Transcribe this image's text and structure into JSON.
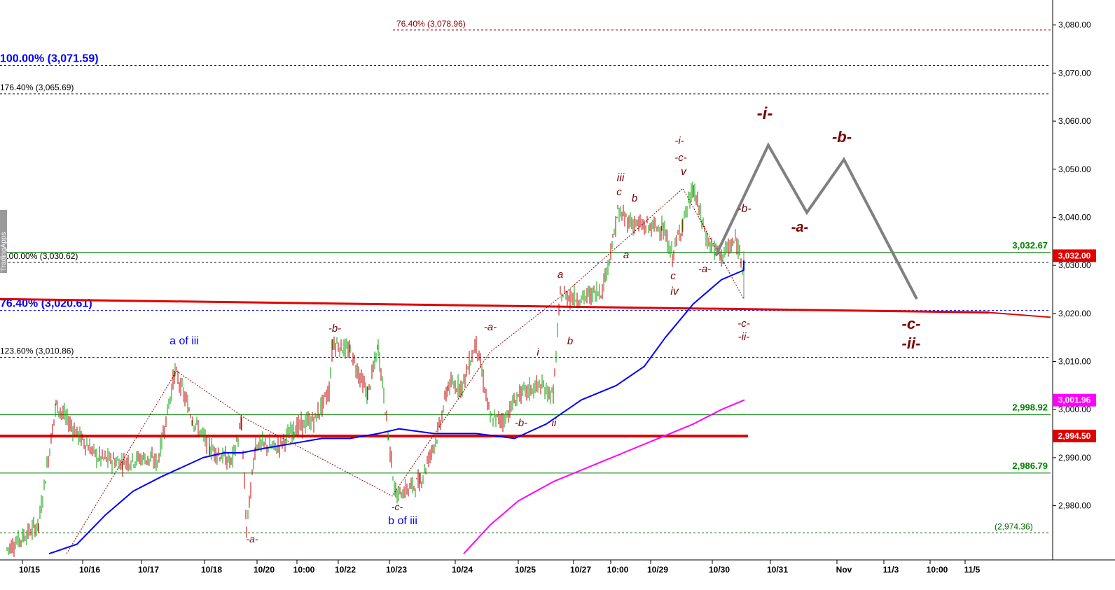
{
  "chart_data": {
    "type": "line",
    "title": "",
    "xlabel": "",
    "ylabel": "",
    "ylim": [
      2970,
      3085
    ],
    "grid": false,
    "colors": {
      "price_up": "#00a000",
      "price_down": "#c00000",
      "ma_fast": "#0000ff",
      "ma_slow": "#ff00ff",
      "trendline": "#e00000",
      "projection": "#808080",
      "wave_label": "#7b0000",
      "fib_blue": "#0000ff",
      "support_green": "#008000"
    },
    "x_tick_labels": [
      "10/15",
      "10/16",
      "10/17",
      "10/18",
      "10/20",
      "10:00",
      "10/22",
      "10/23",
      "10/24",
      "10/25",
      "10/27",
      "10:00",
      "10/29",
      "10/30",
      "10/31",
      "Nov",
      "11/3",
      "10:00",
      "11/5"
    ],
    "y_ticks": [
      2980,
      2990,
      3000,
      3010,
      3020,
      3030,
      3040,
      3050,
      3060,
      3070,
      3080
    ],
    "y_tick_labels": [
      "2,980.00",
      "2,990.00",
      "3,000.00",
      "3,010.00",
      "3,020.00",
      "3,030.00",
      "3,040.00",
      "3,050.00",
      "3,060.00",
      "3,070.00",
      "3,080.00"
    ],
    "fib_levels": [
      {
        "label": "76.40% (3,078.96)",
        "value": 3078.96,
        "color": "#8b0000"
      },
      {
        "label": "100.00% (3,071.59)",
        "value": 3071.59,
        "color": "#0000ff"
      },
      {
        "label": "176.40% (3,065.69)",
        "value": 3065.69,
        "color": "#000000"
      },
      {
        "label": "100.00% (3,030.62)",
        "value": 3030.62,
        "color": "#000000"
      },
      {
        "label": "76.40% (3,020.61)",
        "value": 3020.61,
        "color": "#0000ff"
      },
      {
        "label": "123.60% (3,010.86)",
        "value": 3010.86,
        "color": "#000000"
      },
      {
        "label": "(2,974.36)",
        "value": 2974.36,
        "color": "#006400"
      }
    ],
    "horizontal_levels": [
      {
        "label": "3,032.67",
        "value": 3032.67
      },
      {
        "label": "2,998.92",
        "value": 2998.92
      },
      {
        "label": "2,986.79",
        "value": 2986.79
      }
    ],
    "price_badges": [
      {
        "label": "3,032.00",
        "value": 3032.0,
        "color": "#e00000"
      },
      {
        "label": "3,001.96",
        "value": 3001.96,
        "color": "#ff00ff"
      },
      {
        "label": "2,994.50",
        "value": 2994.5,
        "color": "#e00000"
      }
    ],
    "series": [
      {
        "name": "",
        "x": [
          "10/15",
          "10/15",
          "10/16",
          "10/16",
          "10/16",
          "10/16",
          "10/17",
          "10/17",
          "10/17",
          "10/18",
          "10/18",
          "10/18",
          "10/20",
          "10/20",
          "10/20",
          "10:00",
          "10:00",
          "10/22",
          "10/22",
          "10/22",
          "10/22",
          "10/22",
          "10/23",
          "10/23",
          "10/23",
          "10/23",
          "10/24",
          "10/24",
          "10/24",
          "10/24",
          "10/24",
          "10/25",
          "10/25",
          "10/25",
          "10/25",
          "10/27",
          "10/27",
          "10/27",
          "10:00",
          "10:00",
          "10:00",
          "10:00",
          "10/29",
          "10/29",
          "10/29",
          "10/29",
          "10/30",
          "10/30",
          "10/30",
          "10/30"
        ],
        "values": [
          2971,
          2976,
          3001,
          2995,
          2990,
          2989,
          2990,
          2989,
          3008,
          2998,
          2992,
          2989,
          2997,
          2975,
          2993,
          2992,
          2996,
          2998,
          3004,
          3014,
          3012,
          3003,
          3013,
          2994,
          2982,
          2985,
          2995,
          3005,
          3005,
          3014,
          2998,
          2998,
          3003,
          3005,
          3003,
          3024,
          3023,
          3025,
          3035,
          3041,
          3039,
          3038,
          3038,
          3032,
          3039,
          3046,
          3035,
          3032,
          3035,
          3030
        ]
      },
      {
        "name": "",
        "values": [
          2970,
          2972,
          2978,
          2983,
          2986,
          2988,
          2990,
          2991,
          2991,
          2992,
          2993,
          2994,
          2994,
          2995,
          2996,
          2995,
          2995,
          2994,
          2997,
          3002,
          3005,
          3009,
          3015,
          3022,
          3027,
          3029,
          3031
        ]
      },
      {
        "name": "",
        "values": [
          2970,
          2976,
          2981,
          2985,
          2988,
          2991,
          2994,
          2997,
          3000,
          3002
        ]
      }
    ],
    "projection_path": [
      3032,
      3055,
      3041,
      3052,
      3023
    ],
    "wave_labels": [
      "-a-",
      "a of iii",
      "-b-",
      "-c-",
      "b of iii",
      "-a-",
      "-b-",
      "i",
      "ii",
      "a",
      "b",
      "iii",
      "c",
      "b",
      "a",
      "c",
      "iv",
      "-i-",
      "-c-",
      "v",
      "-a-",
      "-b-",
      "-c-",
      "-ii-",
      "-i-",
      "-a-",
      "-b-",
      "-c-",
      "-ii-"
    ],
    "watermark": "TradingApps"
  }
}
